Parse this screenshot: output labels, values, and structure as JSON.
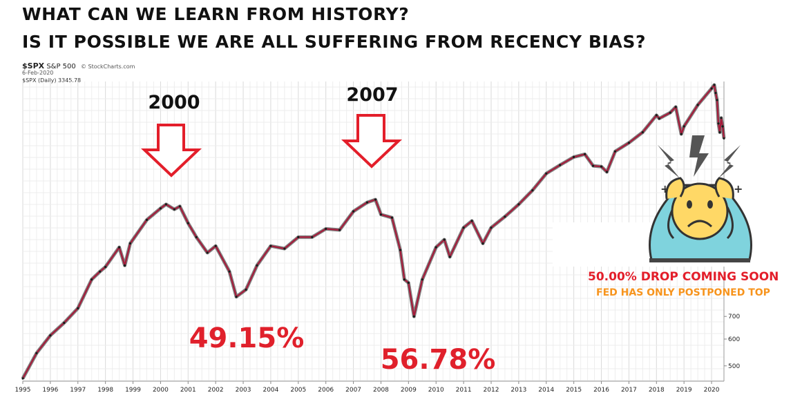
{
  "headline": {
    "line1": "WHAT CAN WE LEARN FROM HISTORY?",
    "line2": "IS IT POSSIBLE WE ARE ALL SUFFERING FROM RECENCY BIAS?"
  },
  "chart_header": {
    "symbol": "$SPX",
    "name": "S&P 500",
    "source": "© StockCharts.com",
    "date": "6-Feb-2020",
    "series_label": "$SPX (Daily) 3345.78"
  },
  "annotations": {
    "peak_2000_label": "2000",
    "peak_2007_label": "2007",
    "drop_2000_label": "49.15%",
    "drop_2007_label": "56.78%",
    "warning_line1": "50.00% DROP COMING SOON",
    "warning_line2": "FED HAS ONLY POSTPONED TOP"
  },
  "colors": {
    "price_line": "#a61a3a",
    "price_dark": "#1a1a1a",
    "arrow": "#e31e2a",
    "percent": "#e0202b",
    "warning_red": "#e31e2a",
    "warning_orange": "#f7941d",
    "emoji_body": "#7fd3dd",
    "emoji_face": "#ffd866"
  },
  "icons": {
    "stressed_person": "stressed-person-icon",
    "arrow_down": "arrow-down-icon"
  },
  "chart_data": {
    "type": "line",
    "title": "",
    "xlabel": "",
    "ylabel": "",
    "y_scale": "log",
    "grid": true,
    "x_ticks": [
      "1995",
      "1996",
      "1997",
      "1998",
      "1999",
      "2000",
      "2001",
      "2002",
      "2003",
      "2004",
      "2005",
      "2006",
      "2007",
      "2008",
      "2009",
      "2010",
      "2011",
      "2012",
      "2013",
      "2014",
      "2015",
      "2016",
      "2017",
      "2018",
      "2019",
      "2020"
    ],
    "y_ticks": [
      500,
      600,
      700
    ],
    "x_range": [
      1995.0,
      2020.45
    ],
    "series": [
      {
        "name": "$SPX (Daily)",
        "x": [
          1995.0,
          1995.5,
          1996.0,
          1996.5,
          1997.0,
          1997.5,
          1997.8,
          1998.0,
          1998.5,
          1998.7,
          1998.9,
          1999.5,
          2000.0,
          2000.2,
          2000.5,
          2000.7,
          2001.0,
          2001.3,
          2001.7,
          2002.0,
          2002.5,
          2002.75,
          2003.1,
          2003.5,
          2004.0,
          2004.5,
          2005.0,
          2005.5,
          2006.0,
          2006.5,
          2007.0,
          2007.5,
          2007.8,
          2008.0,
          2008.4,
          2008.7,
          2008.85,
          2009.0,
          2009.2,
          2009.5,
          2010.0,
          2010.3,
          2010.5,
          2011.0,
          2011.3,
          2011.7,
          2012.0,
          2012.5,
          2013.0,
          2013.5,
          2014.0,
          2014.5,
          2015.0,
          2015.4,
          2015.7,
          2016.0,
          2016.2,
          2016.5,
          2017.0,
          2017.5,
          2018.0,
          2018.1,
          2018.5,
          2018.7,
          2018.9,
          2019.0,
          2019.5,
          2020.0,
          2020.1,
          2020.15,
          2020.2,
          2020.25,
          2020.3,
          2020.35,
          2020.4,
          2020.45
        ],
        "y": [
          459,
          545,
          615,
          670,
          740,
          900,
          950,
          980,
          1120,
          990,
          1150,
          1350,
          1460,
          1500,
          1450,
          1480,
          1320,
          1200,
          1080,
          1130,
          950,
          800,
          840,
          990,
          1130,
          1110,
          1200,
          1200,
          1270,
          1260,
          1430,
          1520,
          1550,
          1400,
          1370,
          1100,
          900,
          880,
          700,
          900,
          1120,
          1180,
          1050,
          1280,
          1340,
          1150,
          1280,
          1380,
          1500,
          1650,
          1850,
          1960,
          2070,
          2110,
          1950,
          1940,
          1870,
          2150,
          2280,
          2450,
          2750,
          2690,
          2800,
          2910,
          2420,
          2550,
          2950,
          3300,
          3380,
          3200,
          3050,
          2600,
          2450,
          2700,
          2550,
          2350
        ],
        "values": [
          459,
          545,
          615,
          670,
          740,
          900,
          950,
          980,
          1120,
          990,
          1150,
          1350,
          1460,
          1500,
          1450,
          1480,
          1320,
          1200,
          1080,
          1130,
          950,
          800,
          840,
          990,
          1130,
          1110,
          1200,
          1200,
          1270,
          1260,
          1430,
          1520,
          1550,
          1400,
          1370,
          1100,
          900,
          880,
          700,
          900,
          1120,
          1180,
          1050,
          1280,
          1340,
          1150,
          1280,
          1380,
          1500,
          1650,
          1850,
          1960,
          2070,
          2110,
          1950,
          1940,
          1870,
          2150,
          2280,
          2450,
          2750,
          2690,
          2800,
          2910,
          2420,
          2550,
          2950,
          3300,
          3380,
          3200,
          3050,
          2600,
          2450,
          2700,
          2550,
          2350
        ]
      }
    ]
  }
}
